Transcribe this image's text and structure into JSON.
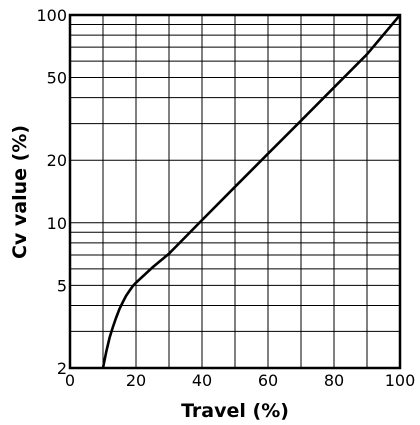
{
  "chart_data": {
    "type": "line",
    "title": "",
    "xlabel": "Travel (%)",
    "ylabel": "Cv value (%)",
    "xlim": [
      0,
      100
    ],
    "ylim": [
      2,
      100
    ],
    "y_scale": "log",
    "grid": true,
    "x_ticks": [
      0,
      20,
      40,
      60,
      80,
      100
    ],
    "x_tick_labels": [
      "0",
      "20",
      "40",
      "60",
      "80",
      "100"
    ],
    "x_gridlines": [
      10,
      20,
      30,
      40,
      50,
      60,
      70,
      80,
      90
    ],
    "y_ticks": [
      2,
      5,
      10,
      20,
      50,
      100
    ],
    "y_tick_labels": [
      "2",
      "5",
      "10",
      "20",
      "50",
      "100"
    ],
    "y_gridlines": [
      3,
      4,
      5,
      6,
      7,
      8,
      9,
      10,
      20,
      30,
      40,
      50,
      60,
      70,
      80,
      90
    ],
    "series": [
      {
        "x": [
          10,
          11,
          12,
          13,
          14,
          15,
          16,
          17,
          18,
          19,
          20,
          25,
          30,
          40,
          50,
          60,
          70,
          80,
          90,
          100
        ],
        "y": [
          2,
          2.4,
          2.8,
          3.15,
          3.5,
          3.85,
          4.15,
          4.45,
          4.7,
          4.95,
          5.15,
          6.1,
          7.1,
          10.3,
          14.9,
          21.5,
          31,
          44.8,
          64.7,
          100
        ]
      }
    ]
  }
}
